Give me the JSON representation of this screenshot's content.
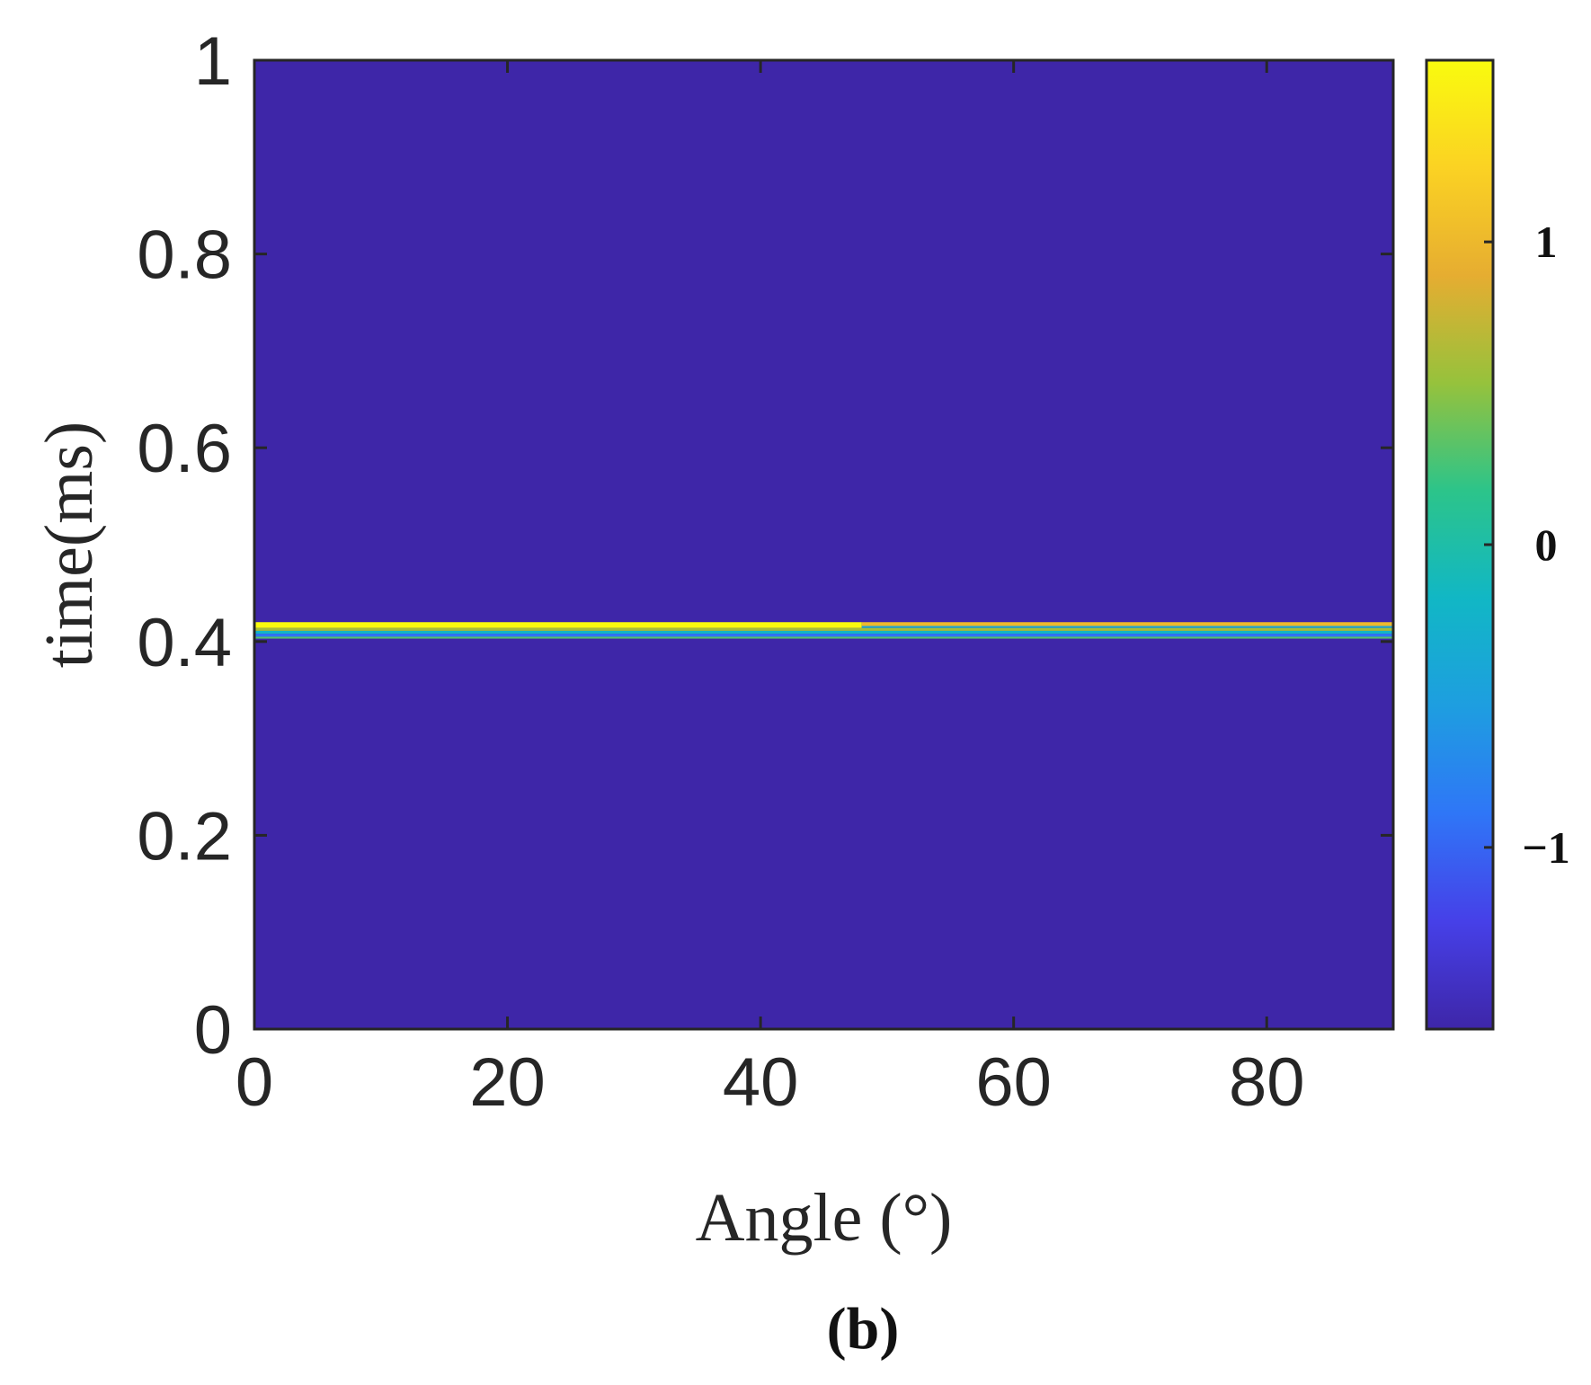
{
  "chart_data": {
    "type": "heatmap",
    "title": "",
    "xlabel": "Angle (°)",
    "ylabel": "time(ms)",
    "xlim": [
      0,
      90
    ],
    "ylim": [
      0,
      1
    ],
    "xticks": [
      0,
      20,
      40,
      60,
      80
    ],
    "yticks": [
      0,
      0.2,
      0.4,
      0.6,
      0.8,
      1
    ],
    "xtick_labels": [
      "0",
      "20",
      "40",
      "60",
      "80"
    ],
    "ytick_labels": [
      "0",
      "0.2",
      "0.4",
      "0.6",
      "0.8",
      "1"
    ],
    "grid": false,
    "background_value": -1.6,
    "bands": [
      {
        "x": [
          0,
          48
        ],
        "t": [
          0.414,
          0.42
        ],
        "value": 1.6
      },
      {
        "x": [
          48,
          90
        ],
        "t": [
          0.416,
          0.42
        ],
        "value": 1.0
      },
      {
        "x": [
          48,
          90
        ],
        "t": [
          0.414,
          0.416
        ],
        "value": -0.4
      },
      {
        "x": [
          0,
          90
        ],
        "t": [
          0.411,
          0.414
        ],
        "value": 0.6
      },
      {
        "x": [
          0,
          90
        ],
        "t": [
          0.408,
          0.411
        ],
        "value": -0.2
      },
      {
        "x": [
          0,
          90
        ],
        "t": [
          0.405,
          0.408
        ],
        "value": -0.9
      },
      {
        "x": [
          0,
          90
        ],
        "t": [
          0.403,
          0.405
        ],
        "value": 0.3
      }
    ],
    "colorbar": {
      "range": [
        -1.6,
        1.6
      ],
      "ticks": [
        1,
        0,
        -1
      ],
      "tick_labels": [
        "1",
        "0",
        "−1"
      ],
      "colormap": "parula",
      "colors": [
        "#3e26a8",
        "#4640e8",
        "#2f76f7",
        "#1e9ee0",
        "#11b7c5",
        "#2cc48a",
        "#96c23c",
        "#e6ad31",
        "#fbd223",
        "#f9fb0e"
      ]
    }
  },
  "panel_label": "(b)"
}
